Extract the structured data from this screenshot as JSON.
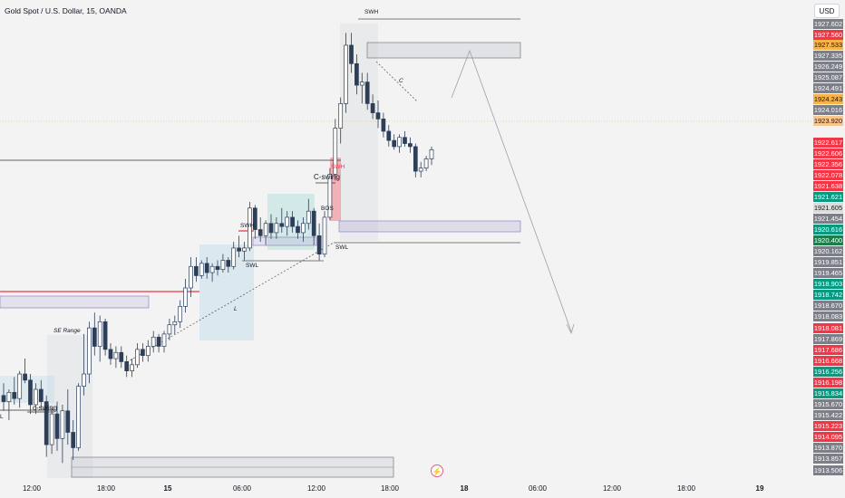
{
  "header": {
    "symbol": "Gold Spot / U.S. Dollar, 15, OANDA",
    "currency": "USD"
  },
  "time_axis": [
    {
      "label": "12:00",
      "bold": false
    },
    {
      "label": "18:00",
      "bold": false
    },
    {
      "label": "15",
      "bold": true
    },
    {
      "label": "06:00",
      "bold": false
    },
    {
      "label": "12:00",
      "bold": false
    },
    {
      "label": "18:00",
      "bold": false
    },
    {
      "label": "18",
      "bold": true
    },
    {
      "label": "06:00",
      "bold": false
    },
    {
      "label": "12:00",
      "bold": false
    },
    {
      "label": "18:00",
      "bold": false
    },
    {
      "label": "19",
      "bold": true
    }
  ],
  "price_labels": [
    {
      "value": "1927.602",
      "style": "gray"
    },
    {
      "value": "1927.560",
      "style": "red"
    },
    {
      "value": "1927.533",
      "style": "orange"
    },
    {
      "value": "1927.335",
      "style": "gray"
    },
    {
      "value": "1926.249",
      "style": "gray"
    },
    {
      "value": "1925.087",
      "style": "gray"
    },
    {
      "value": "1924.491",
      "style": "gray"
    },
    {
      "value": "1924.243",
      "style": "orange"
    },
    {
      "value": "1924.016",
      "style": "gray"
    },
    {
      "value": "1923.920",
      "style": "peach"
    },
    {
      "value": "1922.617",
      "style": "red"
    },
    {
      "value": "1922.606",
      "style": "red"
    },
    {
      "value": "1922.356",
      "style": "red"
    },
    {
      "value": "1922.078",
      "style": "red"
    },
    {
      "value": "1921.638",
      "style": "red"
    },
    {
      "value": "1921.621",
      "style": "green"
    },
    {
      "value": "1921.605",
      "style": "light"
    },
    {
      "value": "1921.454",
      "style": "gray"
    },
    {
      "value": "1920.616",
      "style": "green"
    },
    {
      "value": "1920.400",
      "style": "dkgreen"
    },
    {
      "value": "1920.162",
      "style": "gray"
    },
    {
      "value": "1919.851",
      "style": "gray"
    },
    {
      "value": "1919.465",
      "style": "gray"
    },
    {
      "value": "1918.903",
      "style": "green"
    },
    {
      "value": "1918.742",
      "style": "green"
    },
    {
      "value": "1918.670",
      "style": "gray"
    },
    {
      "value": "1918.083",
      "style": "gray"
    },
    {
      "value": "1918.081",
      "style": "red"
    },
    {
      "value": "1917.869",
      "style": "gray"
    },
    {
      "value": "1917.686",
      "style": "red"
    },
    {
      "value": "1916.668",
      "style": "red"
    },
    {
      "value": "1916.256",
      "style": "green"
    },
    {
      "value": "1916.198",
      "style": "red"
    },
    {
      "value": "1915.834",
      "style": "green"
    },
    {
      "value": "1915.670",
      "style": "gray"
    },
    {
      "value": "1915.422",
      "style": "gray"
    },
    {
      "value": "1915.223",
      "style": "red"
    },
    {
      "value": "1914.095",
      "style": "red"
    },
    {
      "value": "1913.870",
      "style": "gray"
    },
    {
      "value": "1913.857",
      "style": "gray"
    },
    {
      "value": "1913.506",
      "style": "gray"
    }
  ],
  "annotations": {
    "swh_top": "SWH",
    "swh_mid": "SWH",
    "swl_mid": "SWL",
    "swl_right": "SWL",
    "c_swing_mid": "C-swing",
    "c_swing_low": "c-swing",
    "bos": "BOS",
    "swh_red": "SWH",
    "se_range": "SE Range",
    "l_label": "L",
    "c_label": "C",
    "l_left": "L"
  },
  "colors": {
    "up": "#089981",
    "down": "#f23645",
    "candle": "#4a5a70",
    "zone_purple": "#9b8fc7",
    "zone_red": "#f23645",
    "zone_blue": "#b3d4ec",
    "zone_green": "#b2dfdb"
  },
  "chart_data": {
    "type": "candlestick",
    "title": "Gold Spot / U.S. Dollar, 15, OANDA",
    "ylim": [
      1913.2,
      1928.2
    ],
    "current_price": 1923.92,
    "candles": [
      [
        1915.8,
        1916.2,
        1915.3,
        1915.6
      ],
      [
        1915.6,
        1916.0,
        1915.0,
        1915.9
      ],
      [
        1915.9,
        1916.4,
        1915.5,
        1915.7
      ],
      [
        1915.7,
        1916.6,
        1915.4,
        1916.5
      ],
      [
        1916.5,
        1917.0,
        1916.2,
        1916.3
      ],
      [
        1916.3,
        1916.5,
        1915.2,
        1915.5
      ],
      [
        1915.5,
        1916.2,
        1915.2,
        1916.0
      ],
      [
        1916.0,
        1916.3,
        1915.4,
        1915.6
      ],
      [
        1915.6,
        1915.8,
        1913.8,
        1914.2
      ],
      [
        1914.2,
        1915.4,
        1913.9,
        1915.2
      ],
      [
        1915.2,
        1915.6,
        1914.0,
        1914.4
      ],
      [
        1914.4,
        1915.5,
        1913.6,
        1915.3
      ],
      [
        1915.3,
        1916.0,
        1914.2,
        1914.6
      ],
      [
        1914.6,
        1915.0,
        1913.7,
        1914.1
      ],
      [
        1914.1,
        1916.2,
        1914.0,
        1916.1
      ],
      [
        1916.1,
        1917.8,
        1915.8,
        1916.5
      ],
      [
        1916.5,
        1918.2,
        1916.2,
        1918.0
      ],
      [
        1918.0,
        1918.5,
        1917.1,
        1917.4
      ],
      [
        1917.4,
        1918.4,
        1916.9,
        1918.2
      ],
      [
        1918.2,
        1918.3,
        1917.1,
        1917.3
      ],
      [
        1917.3,
        1917.5,
        1916.8,
        1917.0
      ],
      [
        1917.0,
        1917.4,
        1916.7,
        1917.2
      ],
      [
        1917.2,
        1917.4,
        1916.7,
        1916.9
      ],
      [
        1916.9,
        1917.1,
        1916.4,
        1916.6
      ],
      [
        1916.6,
        1917.0,
        1916.4,
        1916.8
      ],
      [
        1916.8,
        1917.5,
        1916.7,
        1917.3
      ],
      [
        1917.3,
        1917.5,
        1916.9,
        1917.1
      ],
      [
        1917.1,
        1917.6,
        1916.9,
        1917.4
      ],
      [
        1917.4,
        1917.9,
        1917.2,
        1917.7
      ],
      [
        1917.7,
        1917.8,
        1917.2,
        1917.4
      ],
      [
        1917.4,
        1917.9,
        1917.2,
        1917.8
      ],
      [
        1917.8,
        1918.3,
        1917.6,
        1918.1
      ],
      [
        1918.1,
        1918.4,
        1917.8,
        1918.2
      ],
      [
        1918.2,
        1918.9,
        1918.0,
        1918.7
      ],
      [
        1918.7,
        1919.6,
        1918.5,
        1919.3
      ],
      [
        1919.3,
        1920.3,
        1919.0,
        1920.0
      ],
      [
        1920.0,
        1920.3,
        1919.5,
        1919.7
      ],
      [
        1919.7,
        1920.2,
        1919.6,
        1920.1
      ],
      [
        1920.1,
        1920.3,
        1919.6,
        1919.8
      ],
      [
        1919.8,
        1920.1,
        1919.5,
        1920.0
      ],
      [
        1920.0,
        1920.2,
        1919.7,
        1919.9
      ],
      [
        1919.9,
        1920.4,
        1919.8,
        1920.2
      ],
      [
        1920.2,
        1920.3,
        1919.8,
        1920.0
      ],
      [
        1920.0,
        1920.8,
        1919.9,
        1920.6
      ],
      [
        1920.6,
        1921.0,
        1920.3,
        1920.5
      ],
      [
        1920.5,
        1920.8,
        1920.2,
        1920.6
      ],
      [
        1920.6,
        1922.1,
        1920.5,
        1921.9
      ],
      [
        1921.9,
        1922.0,
        1920.9,
        1921.2
      ],
      [
        1921.2,
        1921.6,
        1920.8,
        1921.0
      ],
      [
        1921.0,
        1921.5,
        1920.7,
        1921.4
      ],
      [
        1921.4,
        1921.7,
        1920.9,
        1921.1
      ],
      [
        1921.1,
        1921.6,
        1920.9,
        1921.4
      ],
      [
        1921.4,
        1921.9,
        1921.1,
        1921.3
      ],
      [
        1921.3,
        1921.8,
        1921.0,
        1921.6
      ],
      [
        1921.6,
        1921.8,
        1921.1,
        1921.3
      ],
      [
        1921.3,
        1921.5,
        1920.9,
        1921.1
      ],
      [
        1921.1,
        1921.6,
        1920.8,
        1921.4
      ],
      [
        1921.4,
        1922.2,
        1921.2,
        1921.8
      ],
      [
        1921.8,
        1921.9,
        1920.7,
        1921.0
      ],
      [
        1921.0,
        1921.4,
        1920.2,
        1920.4
      ],
      [
        1920.4,
        1921.8,
        1920.3,
        1921.6
      ],
      [
        1921.6,
        1923.2,
        1921.5,
        1923.0
      ],
      [
        1923.0,
        1924.8,
        1922.8,
        1924.5
      ],
      [
        1924.5,
        1925.5,
        1924.0,
        1925.3
      ],
      [
        1925.3,
        1927.6,
        1925.0,
        1927.2
      ],
      [
        1927.2,
        1927.6,
        1926.3,
        1926.6
      ],
      [
        1926.6,
        1926.9,
        1925.6,
        1925.9
      ],
      [
        1925.9,
        1926.3,
        1925.3,
        1926.0
      ],
      [
        1926.0,
        1926.3,
        1925.1,
        1925.3
      ],
      [
        1925.3,
        1925.6,
        1924.8,
        1925.0
      ],
      [
        1925.0,
        1925.4,
        1924.5,
        1924.8
      ],
      [
        1924.8,
        1925.0,
        1924.2,
        1924.4
      ],
      [
        1924.4,
        1924.6,
        1923.9,
        1924.1
      ],
      [
        1924.1,
        1924.3,
        1923.8,
        1923.9
      ],
      [
        1923.9,
        1924.3,
        1923.7,
        1924.2
      ],
      [
        1924.2,
        1924.4,
        1923.9,
        1924.0
      ],
      [
        1924.0,
        1924.2,
        1923.7,
        1923.9
      ],
      [
        1923.9,
        1924.0,
        1922.9,
        1923.1
      ],
      [
        1923.1,
        1923.4,
        1922.9,
        1923.2
      ],
      [
        1923.2,
        1923.6,
        1923.1,
        1923.5
      ],
      [
        1923.5,
        1923.9,
        1923.3,
        1923.8
      ]
    ]
  }
}
